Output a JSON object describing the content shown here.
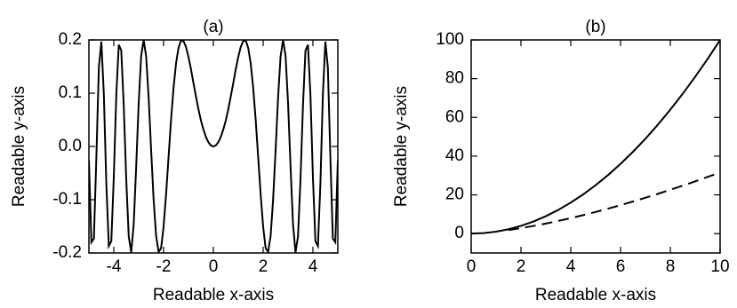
{
  "chart_data": [
    {
      "type": "line",
      "title": "(a)",
      "xlabel": "Readable x-axis",
      "ylabel": "Readable y-axis",
      "xlim": [
        -5,
        5
      ],
      "ylim": [
        -0.2,
        0.2
      ],
      "xticks": [
        -4,
        -2,
        0,
        2,
        4
      ],
      "yticks": [
        -0.2,
        -0.1,
        {
          "value": 0,
          "label": "0.0"
        },
        0.1,
        0.2
      ],
      "x": [
        -5,
        -4.9,
        -4.8,
        -4.7,
        -4.6,
        -4.5,
        -4.4,
        -4.3,
        -4.2,
        -4.1,
        -4,
        -3.9,
        -3.8,
        -3.7,
        -3.6,
        -3.5,
        -3.4,
        -3.3,
        -3.2,
        -3.1,
        -3,
        -2.9,
        -2.8,
        -2.7,
        -2.6,
        -2.5,
        -2.4,
        -2.3,
        -2.2,
        -2.1,
        -2,
        -1.9,
        -1.8,
        -1.7,
        -1.6,
        -1.5,
        -1.4,
        -1.3,
        -1.2,
        -1.1,
        -1,
        -0.9,
        -0.8,
        -0.7,
        -0.6,
        -0.5,
        -0.4,
        -0.3,
        -0.2,
        -0.1,
        0,
        0.1,
        0.2,
        0.3,
        0.4,
        0.5,
        0.6,
        0.7,
        0.8,
        0.9,
        1,
        1.1,
        1.2,
        1.3,
        1.4,
        1.5,
        1.6,
        1.7,
        1.8,
        1.9,
        2,
        2.1,
        2.2,
        2.3,
        2.4,
        2.5,
        2.6,
        2.7,
        2.8,
        2.9,
        3,
        3.1,
        3.2,
        3.3,
        3.4,
        3.5,
        3.6,
        3.7,
        3.8,
        3.9,
        4,
        4.1,
        4.2,
        4.3,
        4.4,
        4.5,
        4.6,
        4.7,
        4.8,
        4.9,
        5
      ],
      "series": [
        {
          "color": "#000000",
          "linestyle": "solid",
          "values": [
            -0.026,
            -0.18,
            -0.173,
            -0.02,
            0.148,
            0.197,
            0.098,
            -0.07,
            -0.187,
            -0.178,
            -0.058,
            0.096,
            0.191,
            0.18,
            0.077,
            -0.062,
            -0.169,
            -0.199,
            -0.146,
            -0.037,
            0.082,
            0.17,
            0.2,
            0.169,
            0.092,
            -0.007,
            -0.1,
            -0.168,
            -0.198,
            -0.191,
            -0.151,
            -0.09,
            -0.02,
            0.05,
            0.11,
            0.156,
            0.185,
            0.199,
            0.198,
            0.187,
            0.168,
            0.145,
            0.119,
            0.094,
            0.07,
            0.049,
            0.032,
            0.018,
            0.008,
            0.002,
            0,
            0.002,
            0.008,
            0.018,
            0.032,
            0.049,
            0.07,
            0.094,
            0.119,
            0.145,
            0.168,
            0.187,
            0.198,
            0.199,
            0.185,
            0.156,
            0.11,
            0.05,
            -0.02,
            -0.09,
            -0.151,
            -0.191,
            -0.198,
            -0.168,
            -0.1,
            -0.007,
            0.092,
            0.169,
            0.2,
            0.17,
            0.082,
            -0.037,
            -0.146,
            -0.199,
            -0.169,
            -0.062,
            0.077,
            0.18,
            0.191,
            0.096,
            -0.058,
            -0.178,
            -0.187,
            -0.07,
            0.098,
            0.197,
            0.148,
            -0.02,
            -0.173,
            -0.18,
            -0.026
          ]
        }
      ]
    },
    {
      "type": "line",
      "title": "(b)",
      "xlabel": "Readable x-axis",
      "ylabel": "Readable y-axis",
      "xlim": [
        0,
        10
      ],
      "ylim": [
        -10,
        100
      ],
      "xticks": [
        0,
        2,
        4,
        6,
        8,
        10
      ],
      "yticks": [
        0,
        20,
        40,
        60,
        80,
        100
      ],
      "x": [
        0,
        0.5,
        1,
        1.5,
        2,
        2.5,
        3,
        3.5,
        4,
        4.5,
        5,
        5.5,
        6,
        6.5,
        7,
        7.5,
        8,
        8.5,
        9,
        9.5,
        10
      ],
      "series": [
        {
          "color": "#000000",
          "linestyle": "solid",
          "values": [
            0,
            0.25,
            1,
            2.25,
            4,
            6.25,
            9,
            12.25,
            16,
            20.25,
            25,
            30.25,
            36,
            42.25,
            49,
            56.25,
            64,
            72.25,
            81,
            90.25,
            100
          ]
        },
        {
          "color": "#000000",
          "linestyle": "dashed",
          "values": [
            null,
            null,
            null,
            1.837,
            2.828,
            3.953,
            5.196,
            6.548,
            8,
            9.546,
            11.18,
            12.899,
            14.697,
            16.572,
            18.52,
            20.54,
            22.627,
            24.782,
            27,
            29.283,
            31.623
          ]
        }
      ]
    }
  ]
}
